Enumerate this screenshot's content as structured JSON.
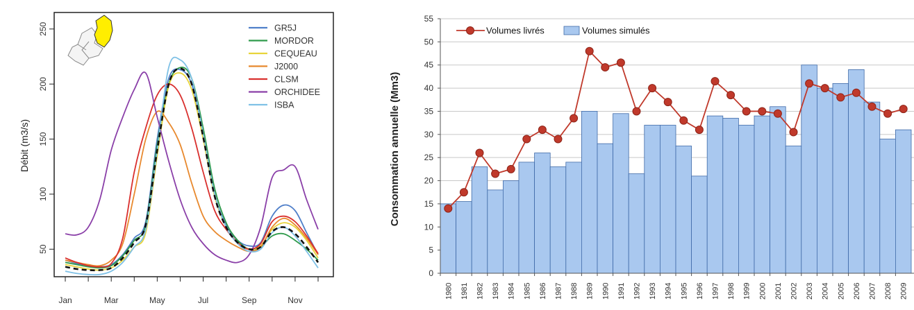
{
  "chart_data": [
    {
      "type": "line",
      "title": "",
      "xlabel": "",
      "ylabel": "Débit (m3/s)",
      "x_ticks": [
        "Jan",
        "Mar",
        "May",
        "Jul",
        "Sep",
        "Nov"
      ],
      "y_ticks": [
        50,
        100,
        150,
        200,
        250
      ],
      "ylim": [
        25,
        265
      ],
      "xlim": [
        1,
        12
      ],
      "legend_position": "top-right",
      "inset_map": "catchment location map with highlighted sub-basin",
      "series": [
        {
          "name": "GR5J",
          "color": "#4f7fc9",
          "x": [
            1,
            1.5,
            2,
            2.5,
            3,
            3.5,
            4,
            4.5,
            5,
            5.5,
            6,
            6.5,
            7,
            7.5,
            8,
            8.5,
            9,
            9.5,
            10,
            10.5,
            11,
            11.5,
            12
          ],
          "y": [
            40,
            37,
            35,
            34,
            36,
            45,
            60,
            75,
            150,
            205,
            213,
            200,
            155,
            100,
            72,
            58,
            53,
            56,
            80,
            90,
            85,
            65,
            45
          ]
        },
        {
          "name": "MORDOR",
          "color": "#2e9a4a",
          "x": [
            1,
            1.5,
            2,
            2.5,
            3,
            3.5,
            4,
            4.5,
            5,
            5.5,
            6,
            6.5,
            7,
            7.5,
            8,
            8.5,
            9,
            9.5,
            10,
            10.5,
            11,
            11.5,
            12
          ],
          "y": [
            38,
            36,
            34,
            33,
            35,
            44,
            58,
            72,
            145,
            200,
            215,
            205,
            160,
            105,
            74,
            58,
            50,
            52,
            62,
            64,
            58,
            50,
            40
          ]
        },
        {
          "name": "CEQUEAU",
          "color": "#e8d43a",
          "x": [
            1,
            1.5,
            2,
            2.5,
            3,
            3.5,
            4,
            4.5,
            5,
            5.5,
            6,
            6.5,
            7,
            7.5,
            8,
            8.5,
            9,
            9.5,
            10,
            10.5,
            11,
            11.5,
            12
          ],
          "y": [
            36,
            34,
            32,
            31,
            33,
            40,
            52,
            65,
            135,
            198,
            210,
            195,
            150,
            98,
            70,
            56,
            50,
            53,
            68,
            74,
            70,
            58,
            42
          ]
        },
        {
          "name": "J2000",
          "color": "#e8892e",
          "x": [
            1,
            1.5,
            2,
            2.5,
            3,
            3.5,
            4,
            4.5,
            5,
            5.5,
            6,
            6.5,
            7,
            7.5,
            8,
            8.5,
            9,
            9.5,
            10,
            10.5,
            11,
            11.5,
            12
          ],
          "y": [
            40,
            38,
            36,
            35,
            40,
            55,
            100,
            150,
            175,
            165,
            145,
            110,
            80,
            66,
            58,
            52,
            48,
            52,
            70,
            78,
            72,
            60,
            45
          ]
        },
        {
          "name": "CLSM",
          "color": "#d9302e",
          "x": [
            1,
            1.5,
            2,
            2.5,
            3,
            3.5,
            4,
            4.5,
            5,
            5.5,
            6,
            6.5,
            7,
            7.5,
            8,
            8.5,
            9,
            9.5,
            10,
            10.5,
            11,
            11.5,
            12
          ],
          "y": [
            42,
            38,
            35,
            34,
            37,
            60,
            120,
            160,
            190,
            200,
            190,
            160,
            120,
            85,
            68,
            56,
            50,
            55,
            75,
            80,
            75,
            62,
            46
          ]
        },
        {
          "name": "ORCHIDEE",
          "color": "#8a3fa8",
          "x": [
            1,
            1.5,
            2,
            2.5,
            3,
            3.5,
            4,
            4.5,
            5,
            5.5,
            6,
            6.5,
            7,
            7.5,
            8,
            8.5,
            9,
            9.5,
            10,
            10.5,
            11,
            11.5,
            12
          ],
          "y": [
            64,
            63,
            70,
            95,
            140,
            170,
            195,
            210,
            170,
            130,
            95,
            70,
            55,
            45,
            40,
            38,
            45,
            70,
            115,
            122,
            125,
            95,
            68
          ]
        },
        {
          "name": "ISBA",
          "color": "#7fc1e6",
          "x": [
            1,
            1.5,
            2,
            2.5,
            3,
            3.5,
            4,
            4.5,
            5,
            5.5,
            6,
            6.5,
            7,
            7.5,
            8,
            8.5,
            9,
            9.5,
            10,
            10.5,
            11,
            11.5,
            12
          ],
          "y": [
            30,
            28,
            27,
            27,
            30,
            38,
            52,
            68,
            140,
            215,
            222,
            205,
            155,
            100,
            70,
            55,
            48,
            50,
            65,
            70,
            62,
            48,
            33
          ]
        },
        {
          "name": "",
          "color": "#111111",
          "dashed": true,
          "x": [
            1,
            1.5,
            2,
            2.5,
            3,
            3.5,
            4,
            4.5,
            5,
            5.5,
            6,
            6.5,
            7,
            7.5,
            8,
            8.5,
            9,
            9.5,
            10,
            10.5,
            11,
            11.5,
            12
          ],
          "y": [
            34,
            32,
            31,
            31,
            33,
            42,
            56,
            72,
            140,
            200,
            214,
            200,
            152,
            98,
            70,
            56,
            50,
            52,
            66,
            70,
            64,
            52,
            38
          ]
        }
      ]
    },
    {
      "type": "bar",
      "title": "",
      "xlabel": "",
      "ylabel": "Consommation  annuelle  (Mm3)",
      "ylim": [
        0,
        55
      ],
      "y_ticks": [
        0,
        5,
        10,
        15,
        20,
        25,
        30,
        35,
        40,
        45,
        50,
        55
      ],
      "grid": true,
      "legend_position": "top-left",
      "categories": [
        "1980",
        "1981",
        "1982",
        "1983",
        "1984",
        "1985",
        "1986",
        "1987",
        "1988",
        "1989",
        "1990",
        "1991",
        "1992",
        "1993",
        "1994",
        "1995",
        "1996",
        "1997",
        "1998",
        "1999",
        "2000",
        "2001",
        "2002",
        "2003",
        "2004",
        "2005",
        "2006",
        "2007",
        "2008",
        "2009"
      ],
      "series": [
        {
          "name": "Volumes livrés",
          "kind": "line",
          "color": "#c0392b",
          "values": [
            14,
            17.5,
            26,
            21.5,
            22.5,
            29,
            31,
            29,
            33.5,
            48,
            44.5,
            45.5,
            35,
            40,
            37,
            33,
            31,
            41.5,
            38.5,
            35,
            35,
            34.5,
            30.5,
            41,
            40,
            38,
            39,
            36,
            34.5,
            35.5
          ]
        },
        {
          "name": "Volumes simulés",
          "kind": "bar",
          "color": "#a9c8ef",
          "values": [
            15,
            15.5,
            23,
            18,
            20,
            24,
            26,
            23,
            24,
            35,
            28,
            34.5,
            21.5,
            32,
            32,
            27.5,
            21,
            34,
            33.5,
            32,
            34,
            36,
            27.5,
            45,
            40,
            41,
            44,
            37,
            29,
            31
          ]
        }
      ]
    }
  ]
}
